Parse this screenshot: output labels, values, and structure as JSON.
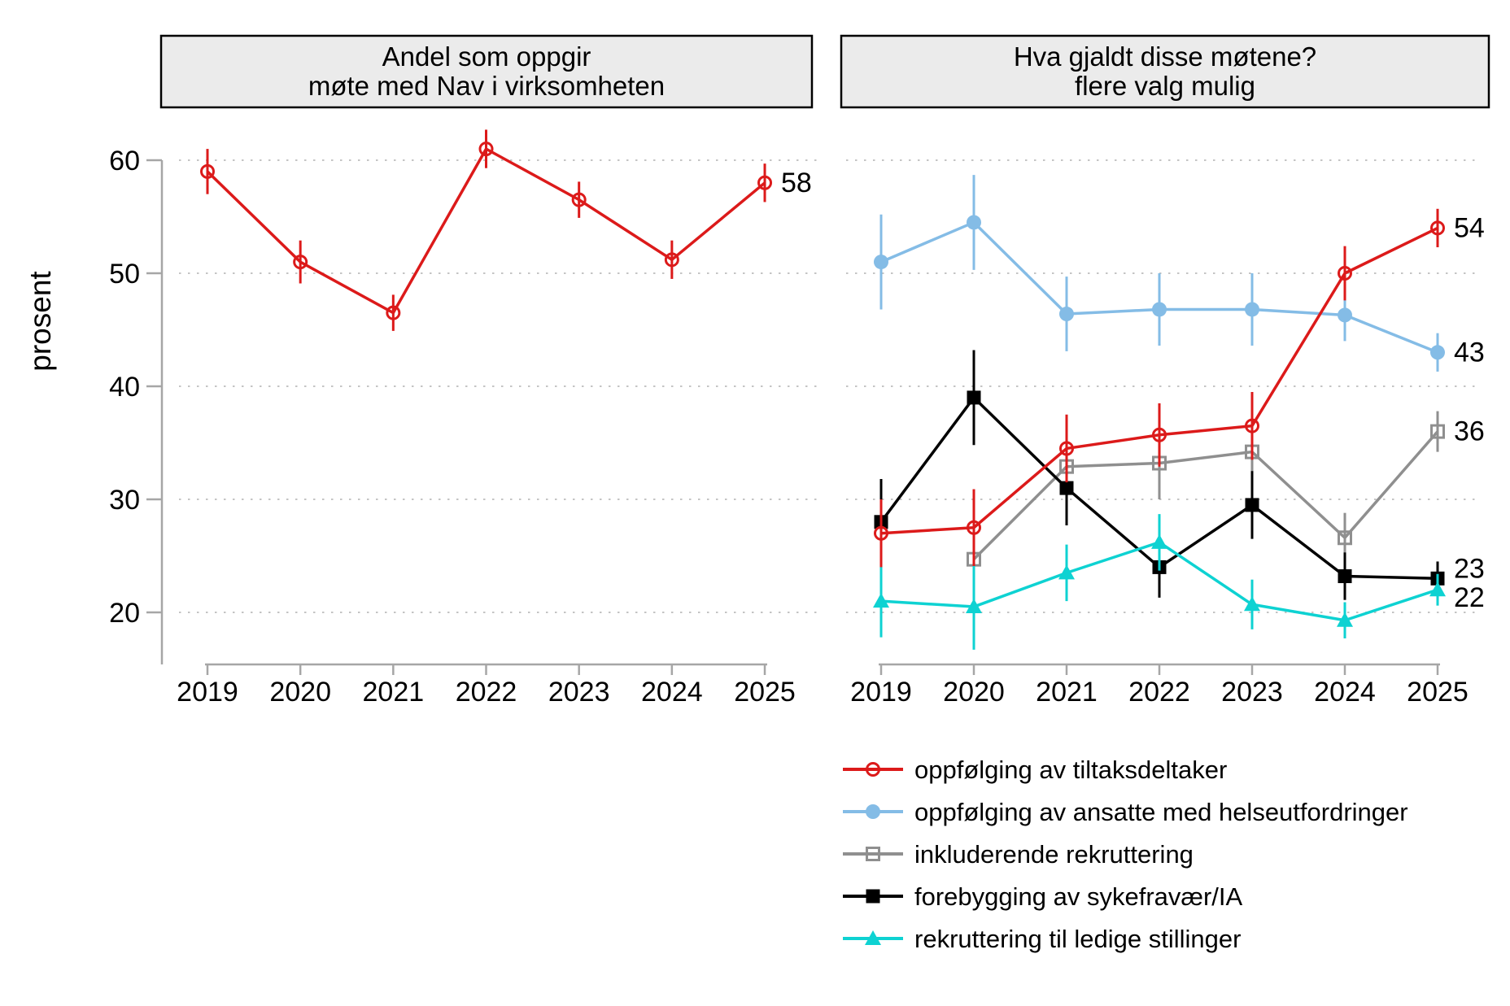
{
  "figure_title": "",
  "y_axis": {
    "label": "prosent",
    "ticks": [
      60,
      50,
      40,
      30,
      20
    ]
  },
  "x_axis": {
    "years": [
      "2019",
      "2020",
      "2021",
      "2022",
      "2023",
      "2024",
      "2025"
    ]
  },
  "colors": {
    "red": "#dc1a1a",
    "blue": "#84bce6",
    "gray": "#8f8f8f",
    "black": "#000000",
    "cyan": "#0ed2d2",
    "title_fill": "#ebebeb",
    "axis_gray": "#a6a6a6",
    "grid_gray": "#c4c4c4"
  },
  "chart_data": [
    {
      "type": "line",
      "title_lines": [
        "Andel som oppgir",
        "møte med Nav i virksomheten"
      ],
      "categories": [
        "2019",
        "2020",
        "2021",
        "2022",
        "2023",
        "2024",
        "2025"
      ],
      "ylabel": "prosent",
      "ylim": [
        15,
        65
      ],
      "yticks": [
        20,
        30,
        40,
        50,
        60
      ],
      "grid": "dotted",
      "series": [
        {
          "key": "andel-mote",
          "name": "oppfølging av tiltaksdeltaker",
          "color": "#dc1a1a",
          "marker": "circle-open",
          "values": [
            59,
            51,
            46.5,
            61,
            56.5,
            51.2,
            58
          ],
          "ci": [
            2.0,
            1.9,
            1.6,
            1.7,
            1.6,
            1.7,
            1.7
          ],
          "end_label": "58",
          "label_dy": 0
        }
      ]
    },
    {
      "type": "line",
      "title_lines": [
        "Hva gjaldt disse møtene?",
        "flere valg mulig"
      ],
      "categories": [
        "2019",
        "2020",
        "2021",
        "2022",
        "2023",
        "2024",
        "2025"
      ],
      "ylim": [
        15,
        65
      ],
      "yticks": [
        20,
        30,
        40,
        50,
        60
      ],
      "grid": "dotted",
      "legend_position": "below",
      "series": [
        {
          "key": "helseutfordringer",
          "name": "oppfølging av ansatte med helseutfordringer",
          "color": "#84bce6",
          "marker": "circle-filled",
          "values": [
            51,
            54.5,
            46.4,
            46.8,
            46.8,
            46.3,
            43
          ],
          "ci": [
            4.2,
            4.2,
            3.3,
            3.2,
            3.2,
            2.3,
            1.7
          ],
          "end_label": "43",
          "label_dy": 0
        },
        {
          "key": "inkluderende",
          "name": "inkluderende rekruttering",
          "color": "#8f8f8f",
          "marker": "square-open",
          "values": [
            null,
            24.7,
            32.9,
            33.2,
            34.2,
            26.6,
            36
          ],
          "ci": [
            null,
            3.2,
            3.0,
            3.2,
            3.2,
            2.2,
            1.8
          ],
          "end_label": "36",
          "label_dy": 0
        },
        {
          "key": "sykefravaer",
          "name": "forebygging av sykefravær/IA",
          "color": "#000000",
          "marker": "square-filled",
          "values": [
            28,
            39,
            31,
            24,
            29.5,
            23.2,
            23
          ],
          "ci": [
            3.8,
            4.2,
            3.3,
            2.7,
            3.0,
            2.1,
            1.5
          ],
          "end_label": "23",
          "label_dy": -12
        },
        {
          "key": "ledige-stillinger",
          "name": "rekruttering til ledige stillinger",
          "color": "#0ed2d2",
          "marker": "triangle-filled",
          "values": [
            21,
            20.5,
            23.5,
            26.2,
            20.7,
            19.3,
            22
          ],
          "ci": [
            3.2,
            3.8,
            2.5,
            2.5,
            2.2,
            1.6,
            1.4
          ],
          "end_label": "22",
          "label_dy": 10
        },
        {
          "key": "tiltaksdeltaker",
          "name": "oppfølging av tiltaksdeltaker",
          "color": "#dc1a1a",
          "marker": "circle-open",
          "values": [
            27,
            27.5,
            34.5,
            35.7,
            36.5,
            50,
            54
          ],
          "ci": [
            3.0,
            3.4,
            3.0,
            2.8,
            3.0,
            2.4,
            1.7
          ],
          "end_label": "54",
          "label_dy": 0
        }
      ]
    }
  ],
  "legend": {
    "items": [
      {
        "key": "tiltaksdeltaker",
        "label": "oppfølging av tiltaksdeltaker",
        "color": "#dc1a1a",
        "marker": "circle-open"
      },
      {
        "key": "helseutfordringer",
        "label": "oppfølging av ansatte med helseutfordringer",
        "color": "#84bce6",
        "marker": "circle-filled"
      },
      {
        "key": "inkluderende",
        "label": "inkluderende rekruttering",
        "color": "#8f8f8f",
        "marker": "square-open"
      },
      {
        "key": "sykefravaer",
        "label": "forebygging av sykefravær/IA",
        "color": "#000000",
        "marker": "square-filled"
      },
      {
        "key": "ledige-stillinger",
        "label": "rekruttering til ledige stillinger",
        "color": "#0ed2d2",
        "marker": "triangle-filled"
      }
    ]
  }
}
